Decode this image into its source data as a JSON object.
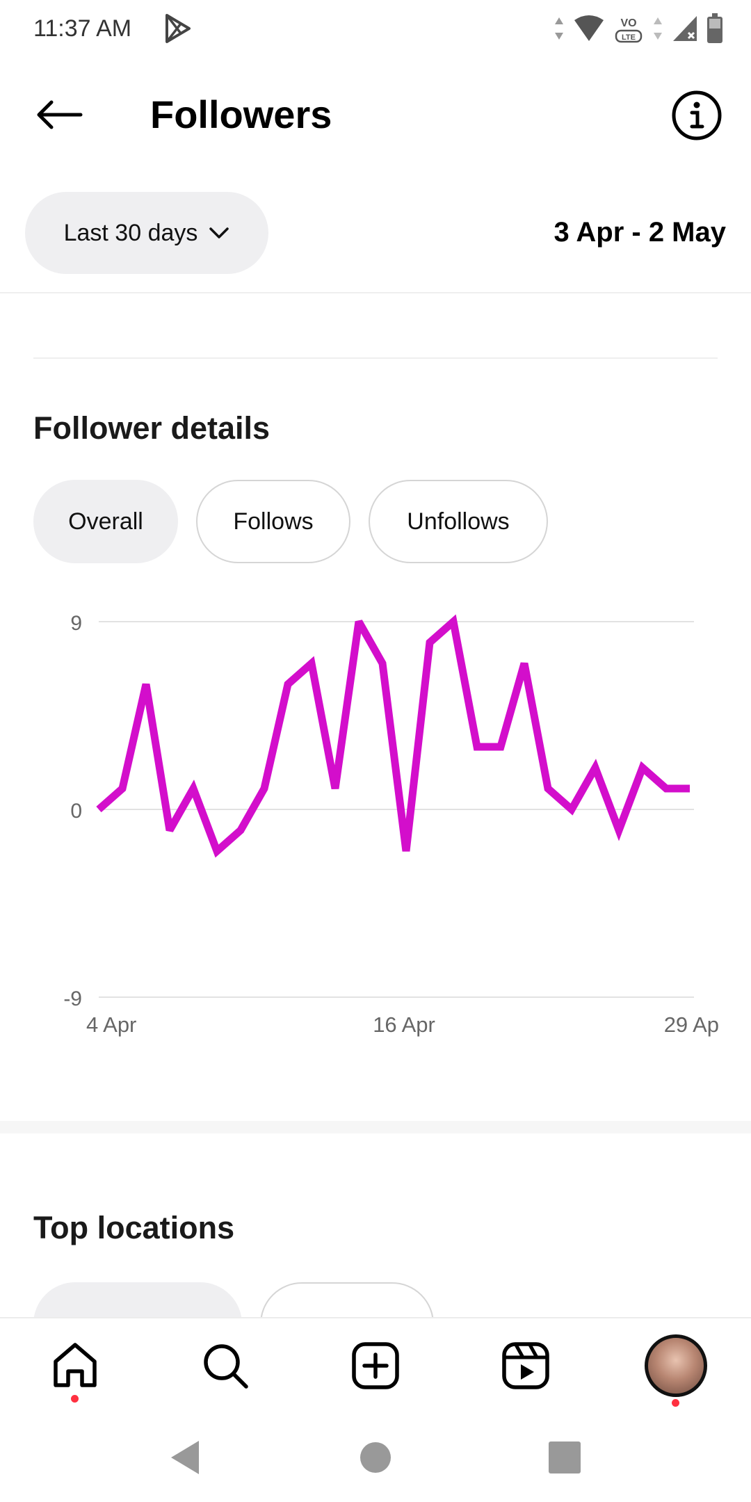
{
  "status_bar": {
    "time": "11:37 AM"
  },
  "header": {
    "title": "Followers"
  },
  "filters": {
    "date_filter_label": "Last 30 days",
    "date_range": "3 Apr - 2 May"
  },
  "follower_details": {
    "title": "Follower details",
    "tabs": [
      {
        "label": "Overall"
      },
      {
        "label": "Follows"
      },
      {
        "label": "Unfollows"
      }
    ]
  },
  "chart_data": {
    "type": "line",
    "y_ticks": [
      "9",
      "0",
      "-9"
    ],
    "ylim": [
      -9,
      9
    ],
    "x_tick_labels": [
      "4 Apr",
      "16 Apr",
      "29 Ap"
    ],
    "x": [
      "4 Apr",
      "5 Apr",
      "6 Apr",
      "7 Apr",
      "8 Apr",
      "9 Apr",
      "10 Apr",
      "11 Apr",
      "12 Apr",
      "13 Apr",
      "14 Apr",
      "15 Apr",
      "16 Apr",
      "17 Apr",
      "18 Apr",
      "19 Apr",
      "20 Apr",
      "21 Apr",
      "22 Apr",
      "23 Apr",
      "24 Apr",
      "25 Apr",
      "26 Apr",
      "27 Apr",
      "28 Apr",
      "29 Apr"
    ],
    "values": [
      0,
      1,
      6,
      -1,
      1,
      -2,
      -1,
      1,
      6,
      7,
      1,
      9,
      7,
      -2,
      8,
      9,
      3,
      3,
      7,
      1,
      0,
      2,
      -1,
      2,
      1,
      1
    ],
    "grid": true,
    "color": "#d30ecb"
  },
  "top_locations": {
    "title": "Top locations"
  },
  "colors": {
    "line": "#d30ecb",
    "pill_bg": "#efeff1",
    "nav_dot": "#ff3040"
  },
  "nav_icons": [
    "home-icon",
    "search-icon",
    "create-icon",
    "reels-icon",
    "profile-avatar"
  ]
}
